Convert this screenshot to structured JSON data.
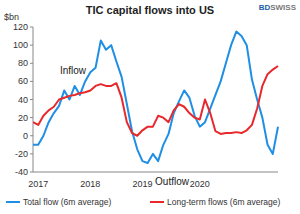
{
  "chart_data": {
    "type": "line",
    "title": "TIC capital flows into US",
    "y_label": "$bn",
    "logo": [
      "BD",
      "SWISS"
    ],
    "annotations": [
      "Inflow",
      "Outflow"
    ],
    "categories": [
      null,
      "2017",
      null,
      null,
      null,
      null,
      null,
      null,
      null,
      null,
      null,
      "2018",
      null,
      null,
      null,
      null,
      null,
      null,
      null,
      null,
      null,
      "2019",
      null,
      null,
      null,
      null,
      null,
      null,
      null,
      null,
      null,
      null,
      "2020",
      null,
      null,
      null,
      null,
      null,
      null,
      null,
      null,
      null,
      null,
      null,
      null,
      null,
      null,
      null
    ],
    "series": [
      {
        "name": "Total flow (6m average)",
        "color": "#1f8fe5",
        "values": [
          -10,
          -10,
          0,
          15,
          25,
          33,
          50,
          40,
          55,
          45,
          60,
          70,
          75,
          105,
          95,
          100,
          82,
          65,
          35,
          5,
          -15,
          -28,
          -30,
          -20,
          -28,
          -10,
          2,
          25,
          38,
          50,
          42,
          22,
          10,
          15,
          30,
          45,
          60,
          80,
          100,
          115,
          110,
          100,
          62,
          40,
          20,
          -10,
          -20,
          10
        ]
      },
      {
        "name": "Long-term flows (6m average)",
        "color": "#e8282b",
        "values": [
          15,
          12,
          22,
          28,
          32,
          40,
          42,
          44,
          45,
          47,
          48,
          50,
          55,
          57,
          55,
          55,
          58,
          42,
          15,
          3,
          0,
          6,
          10,
          10,
          22,
          20,
          15,
          28,
          35,
          32,
          25,
          20,
          18,
          40,
          25,
          5,
          2,
          3,
          3,
          4,
          3,
          6,
          12,
          30,
          55,
          68,
          73,
          77
        ]
      }
    ],
    "ylim": [
      -40,
      120
    ],
    "yticks": [
      -40,
      -20,
      0,
      20,
      40,
      60,
      80,
      100,
      120
    ],
    "grid": false,
    "legend": "bottom"
  }
}
